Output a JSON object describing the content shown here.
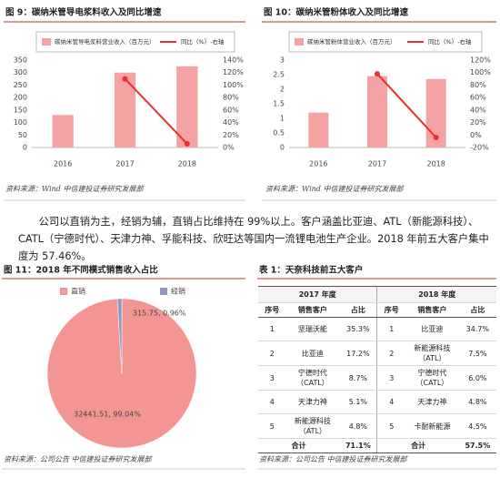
{
  "chart_data": [
    {
      "type": "bar-line",
      "title": "图 9：碳纳米管导电浆料收入及同比增速",
      "categories": [
        "2016",
        "2017",
        "2018"
      ],
      "series": [
        {
          "name": "碳纳米管导电浆料营业收入（百万元）",
          "color": "#f4a3a2",
          "type": "bar",
          "values": [
            130,
            300,
            325
          ]
        },
        {
          "name": "同比（%）-右轴",
          "color": "#e5322d",
          "type": "line",
          "axis": "y2",
          "values": [
            null,
            110,
            6
          ]
        }
      ],
      "ylim": [
        0,
        350
      ],
      "yticks": [
        0,
        50,
        100,
        150,
        200,
        250,
        300,
        350
      ],
      "y2lim": [
        0,
        140
      ],
      "y2ticks": [
        {
          "value": 0,
          "label": "0%"
        },
        {
          "value": 20,
          "label": "20%"
        },
        {
          "value": 40,
          "label": "40%"
        },
        {
          "value": 60,
          "label": "60%"
        },
        {
          "value": 80,
          "label": "80%"
        },
        {
          "value": 100,
          "label": "100%"
        },
        {
          "value": 120,
          "label": "120%"
        },
        {
          "value": 140,
          "label": "140%"
        }
      ],
      "grid": false,
      "source": "资料来源：Wind   中信建投证券研究发展部"
    },
    {
      "type": "bar-line",
      "title": "图 10：碳纳米管粉体收入及同比增速",
      "categories": [
        "2016",
        "2017",
        "2018"
      ],
      "series": [
        {
          "name": "碳纳米管粉体营业收入（百万元）",
          "color": "#f4a3a2",
          "type": "bar",
          "values": [
            1.2,
            2.45,
            2.35
          ]
        },
        {
          "name": "同比（%）-右轴",
          "color": "#e5322d",
          "type": "line",
          "axis": "y2",
          "values": [
            null,
            98,
            -4
          ]
        }
      ],
      "ylim": [
        0,
        3
      ],
      "yticks": [
        0,
        0.5,
        1,
        1.5,
        2,
        2.5,
        3
      ],
      "y2lim": [
        -20,
        120
      ],
      "y2ticks": [
        {
          "value": -20,
          "label": "-20%"
        },
        {
          "value": 0,
          "label": "0%"
        },
        {
          "value": 20,
          "label": "20%"
        },
        {
          "value": 40,
          "label": "40%"
        },
        {
          "value": 60,
          "label": "60%"
        },
        {
          "value": 80,
          "label": "80%"
        },
        {
          "value": 100,
          "label": "100%"
        },
        {
          "value": 120,
          "label": "120%"
        }
      ],
      "grid": false,
      "source": "资料来源：Wind   中信建投证券研究发展部"
    },
    {
      "type": "pie",
      "title": "图 11：2018 年不同模式销售收入占比",
      "categories": [
        "直销",
        "经销"
      ],
      "values": [
        32441.51,
        315.75
      ],
      "value_labels": [
        "32441.51, 99.04%",
        "315.75, 0.96%"
      ],
      "colors": [
        "#f39592",
        "#8e9bbd"
      ],
      "source": "资料来源：公司公告   中信建投证券研究发展部"
    }
  ],
  "paragraph": "公司以直销为主，经销为辅，直销占比维持在 99%以上。客户涵盖比亚迪、ATL（新能源科技）、CATL（宁德时代）、天津力神、孚能科技、欣旺达等国内一流锂电池生产企业。2018 年前五大客户集中度为 57.46%。",
  "table": {
    "title": "表 1：天奈科技前五大客户",
    "years": [
      "2017 年度",
      "2018 年度"
    ],
    "header": [
      "序号",
      "销售客户",
      "占比"
    ],
    "rows": [
      [
        "1",
        "坚瑞沃能",
        "35.3%",
        "1",
        "比亚迪",
        "34.7%"
      ],
      [
        "2",
        "比亚迪",
        "17.2%",
        "2",
        "新能源科技（ATL）",
        "7.5%"
      ],
      [
        "3",
        "宁德时代（CATL）",
        "8.7%",
        "3",
        "宁德时代（CATL）",
        "6.0%"
      ],
      [
        "4",
        "天津力神",
        "5.1%",
        "4",
        "天津力神",
        "4.8%"
      ],
      [
        "5",
        "新能源科技（ATL）",
        "4.8%",
        "5",
        "卡耐新能源",
        "4.5%"
      ]
    ],
    "total": [
      "合计",
      "71.1%",
      "合计",
      "57.5%"
    ],
    "source": "资料来源：公司公告   中信建投证券研究发展部"
  }
}
